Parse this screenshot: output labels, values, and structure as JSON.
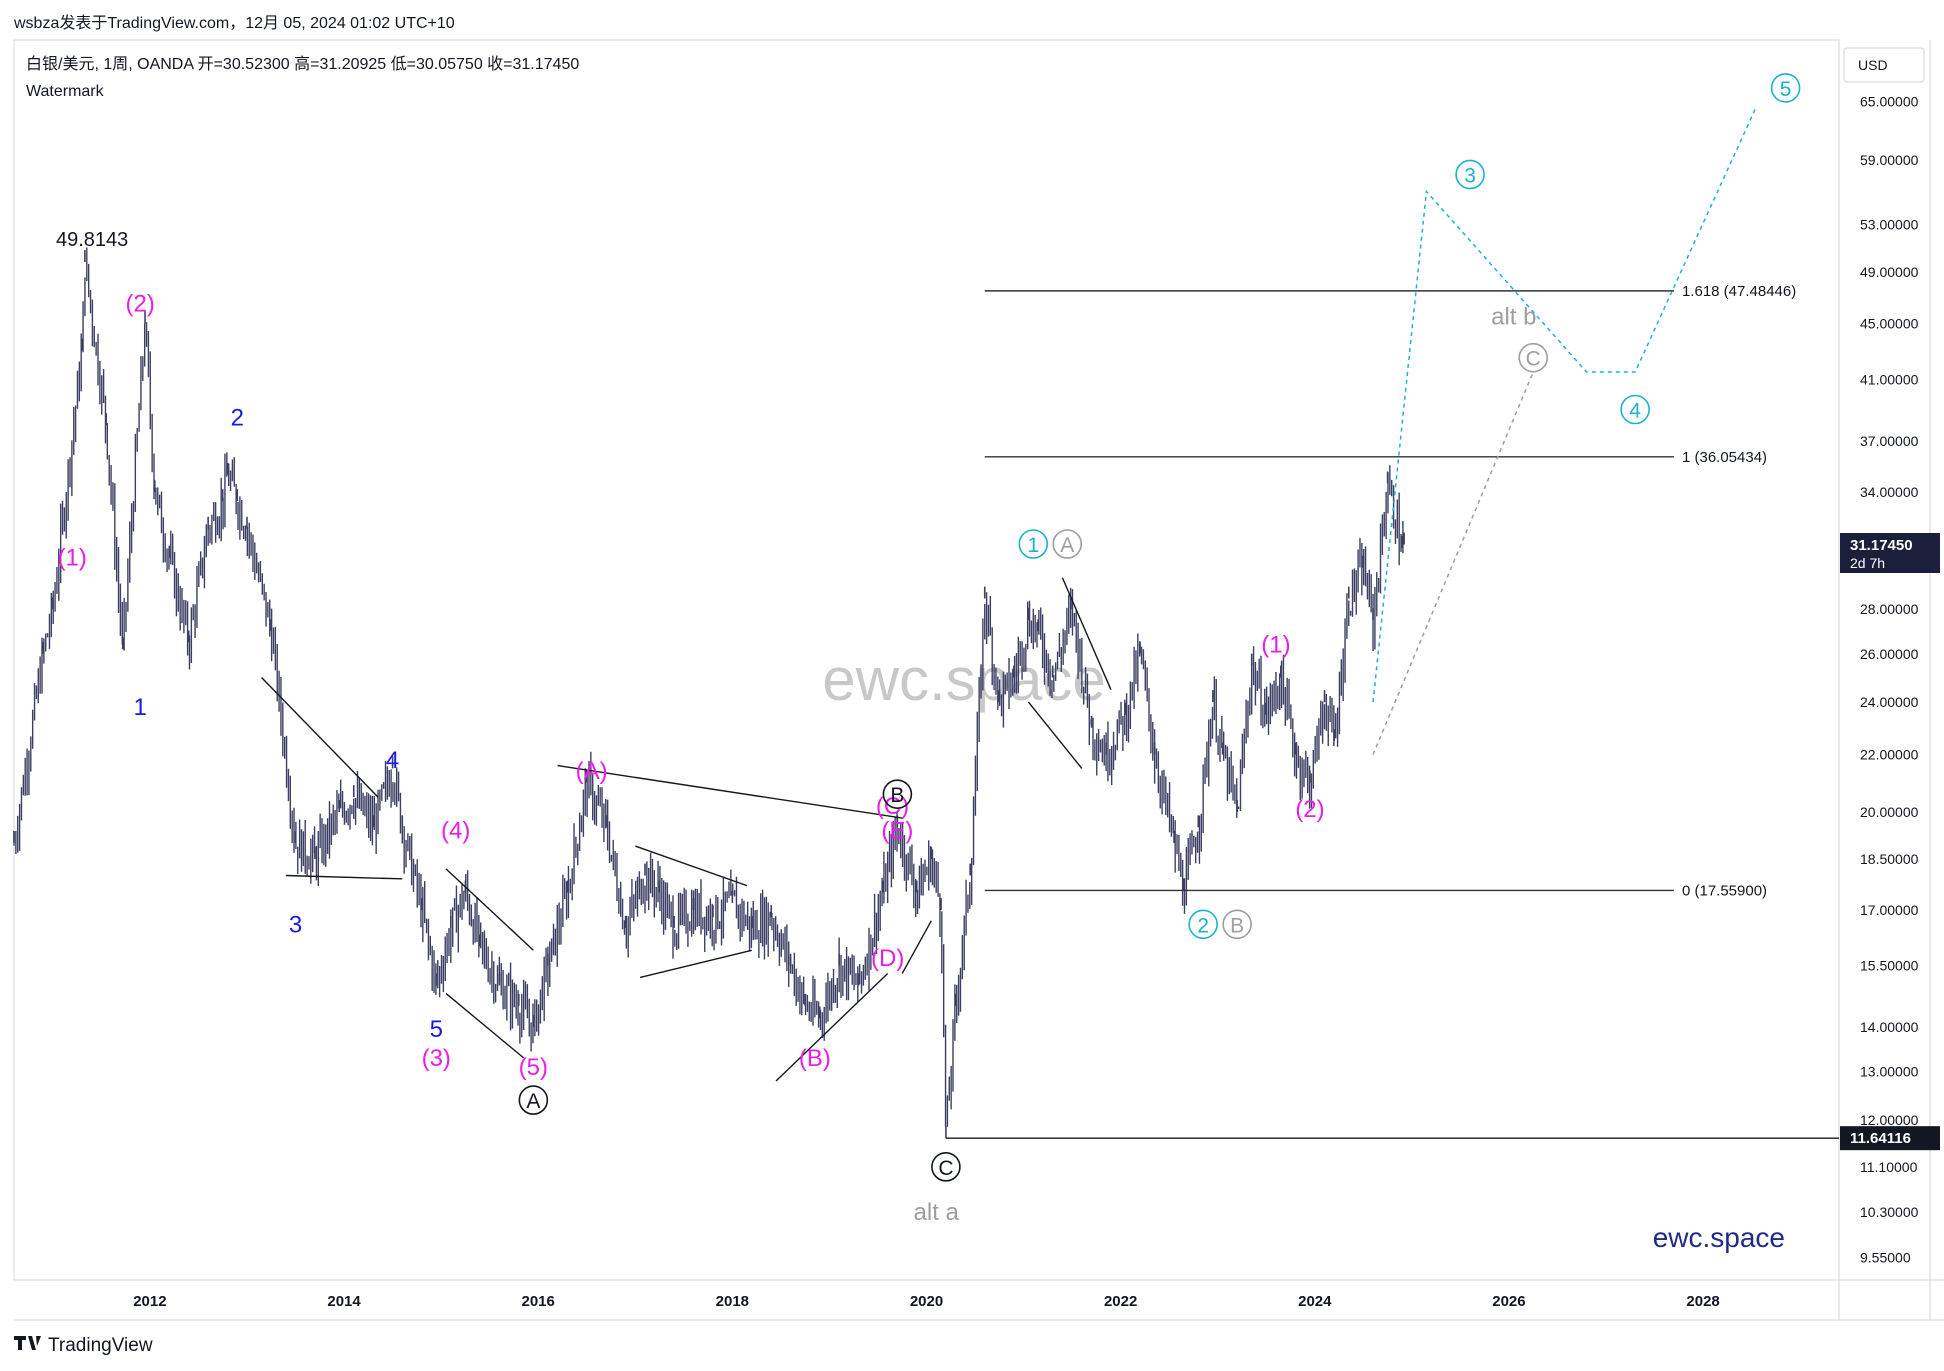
{
  "header": {
    "published": "wsbza发表于TradingView.com，12月 05, 2024 01:02 UTC+10",
    "symbol_line": "白银/美元, 1周, OANDA  开=30.52300  高=31.20925  低=30.05750  收=31.17450",
    "watermark_label": "Watermark"
  },
  "price_axis": {
    "currency": "USD",
    "ticks": [
      "65.00000",
      "59.00000",
      "53.00000",
      "49.00000",
      "45.00000",
      "41.00000",
      "37.00000",
      "34.00000",
      "28.00000",
      "26.00000",
      "24.00000",
      "22.00000",
      "20.00000",
      "18.50000",
      "17.00000",
      "15.50000",
      "14.00000",
      "13.00000",
      "12.00000",
      "11.10000",
      "10.30000",
      "9.55000"
    ],
    "last_price": "31.17450",
    "countdown": "2d 7h",
    "low_marker": "11.64116"
  },
  "time_axis": {
    "ticks": [
      "2012",
      "2014",
      "2016",
      "2018",
      "2020",
      "2022",
      "2024",
      "2026",
      "2028"
    ]
  },
  "overlay": {
    "center_watermark": "ewc.space",
    "brand": "ewc.space"
  },
  "footer": {
    "logo_text": "TradingView"
  },
  "colors": {
    "candle": "#3c3f63",
    "magenta": "#e91ee4",
    "blue": "#1a1ae6",
    "cyan": "#1ab3cf",
    "gray": "#9e9e9e",
    "black": "#131722",
    "red": "#e53935",
    "navy": "#1f2a8a"
  },
  "chart_data": {
    "type": "candlestick",
    "symbol": "XAGUSD",
    "interval": "1W",
    "exchange": "OANDA",
    "log_scale": true,
    "ylim": [
      9.2,
      72
    ],
    "xlim": [
      2010.6,
      2029.4
    ],
    "ohlc_last": {
      "open": 30.523,
      "high": 31.20925,
      "low": 30.0575,
      "close": 31.1745
    },
    "pivots": [
      [
        2010.6,
        19.0
      ],
      [
        2010.9,
        26.0
      ],
      [
        2011.0,
        28.0
      ],
      [
        2011.3,
        43.0
      ],
      [
        2011.33,
        49.8143
      ],
      [
        2011.55,
        38.0
      ],
      [
        2011.72,
        26.2
      ],
      [
        2011.95,
        45.0
      ],
      [
        2012.05,
        34.0
      ],
      [
        2012.2,
        30.5
      ],
      [
        2012.4,
        26.5
      ],
      [
        2012.6,
        32.0
      ],
      [
        2012.75,
        33.5
      ],
      [
        2012.8,
        35.0
      ],
      [
        2012.9,
        33.5
      ],
      [
        2013.0,
        32.0
      ],
      [
        2013.25,
        27.0
      ],
      [
        2013.5,
        19.0
      ],
      [
        2013.7,
        18.5
      ],
      [
        2013.95,
        20.0
      ],
      [
        2014.1,
        20.5
      ],
      [
        2014.3,
        19.5
      ],
      [
        2014.5,
        21.5
      ],
      [
        2014.6,
        19.5
      ],
      [
        2014.8,
        17.0
      ],
      [
        2014.95,
        15.0
      ],
      [
        2015.1,
        16.5
      ],
      [
        2015.25,
        17.5
      ],
      [
        2015.4,
        16.0
      ],
      [
        2015.6,
        15.0
      ],
      [
        2015.8,
        14.5
      ],
      [
        2015.95,
        14.0
      ],
      [
        2016.1,
        15.5
      ],
      [
        2016.3,
        17.5
      ],
      [
        2016.5,
        21.0
      ],
      [
        2016.7,
        19.5
      ],
      [
        2016.9,
        16.5
      ],
      [
        2017.1,
        18.0
      ],
      [
        2017.25,
        17.5
      ],
      [
        2017.4,
        16.5
      ],
      [
        2017.6,
        17.0
      ],
      [
        2017.8,
        16.8
      ],
      [
        2018.0,
        17.2
      ],
      [
        2018.2,
        16.5
      ],
      [
        2018.4,
        16.8
      ],
      [
        2018.6,
        15.5
      ],
      [
        2018.75,
        14.5
      ],
      [
        2018.9,
        14.2
      ],
      [
        2019.1,
        15.5
      ],
      [
        2019.3,
        15.0
      ],
      [
        2019.55,
        17.5
      ],
      [
        2019.7,
        19.5
      ],
      [
        2019.9,
        17.5
      ],
      [
        2020.05,
        18.5
      ],
      [
        2020.15,
        17.0
      ],
      [
        2020.2,
        11.64116
      ],
      [
        2020.3,
        14.5
      ],
      [
        2020.45,
        18.0
      ],
      [
        2020.6,
        28.5
      ],
      [
        2020.75,
        24.0
      ],
      [
        2020.9,
        25.0
      ],
      [
        2021.05,
        27.5
      ],
      [
        2021.15,
        27.0
      ],
      [
        2021.3,
        25.0
      ],
      [
        2021.5,
        28.0
      ],
      [
        2021.7,
        23.0
      ],
      [
        2021.85,
        22.0
      ],
      [
        2022.05,
        23.5
      ],
      [
        2022.2,
        26.0
      ],
      [
        2022.35,
        22.0
      ],
      [
        2022.55,
        19.0
      ],
      [
        2022.65,
        17.559
      ],
      [
        2022.8,
        19.5
      ],
      [
        2022.95,
        24.0
      ],
      [
        2023.05,
        22.0
      ],
      [
        2023.2,
        20.0
      ],
      [
        2023.35,
        25.5
      ],
      [
        2023.5,
        23.5
      ],
      [
        2023.65,
        25.0
      ],
      [
        2023.8,
        22.0
      ],
      [
        2023.95,
        21.0
      ],
      [
        2024.1,
        24.0
      ],
      [
        2024.2,
        22.5
      ],
      [
        2024.35,
        28.5
      ],
      [
        2024.5,
        30.0
      ],
      [
        2024.6,
        27.5
      ],
      [
        2024.75,
        34.5
      ],
      [
        2024.9,
        31.0
      ],
      [
        2024.92,
        31.1745
      ]
    ]
  },
  "annotations": {
    "high_label": "49.8143",
    "fib_levels": [
      {
        "label": "1.618 (47.48446)",
        "value": 47.48446
      },
      {
        "label": "1 (36.05434)",
        "value": 36.05434
      },
      {
        "label": "0 (17.55900)",
        "value": 17.559
      }
    ],
    "wave_labels": [
      {
        "text": "(1)",
        "t": 2011.2,
        "p": 30.5,
        "color": "magenta",
        "style": "plain"
      },
      {
        "text": "(2)",
        "t": 2011.9,
        "p": 46.5,
        "color": "magenta",
        "style": "plain"
      },
      {
        "text": "1",
        "t": 2011.9,
        "p": 23.8,
        "color": "blue",
        "style": "plain"
      },
      {
        "text": "2",
        "t": 2012.9,
        "p": 38.5,
        "color": "blue",
        "style": "plain"
      },
      {
        "text": "3",
        "t": 2013.5,
        "p": 16.6,
        "color": "blue",
        "style": "plain"
      },
      {
        "text": "4",
        "t": 2014.5,
        "p": 21.8,
        "color": "blue",
        "style": "plain"
      },
      {
        "text": "5",
        "t": 2014.95,
        "p": 13.95,
        "color": "blue",
        "style": "plain"
      },
      {
        "text": "(3)",
        "t": 2014.95,
        "p": 13.3,
        "color": "magenta",
        "style": "plain"
      },
      {
        "text": "(4)",
        "t": 2015.15,
        "p": 19.4,
        "color": "magenta",
        "style": "plain"
      },
      {
        "text": "(5)",
        "t": 2015.95,
        "p": 13.1,
        "color": "magenta",
        "style": "plain"
      },
      {
        "text": "A",
        "t": 2015.95,
        "p": 12.4,
        "color": "black",
        "style": "circle"
      },
      {
        "text": "(A)",
        "t": 2016.55,
        "p": 21.4,
        "color": "magenta",
        "style": "plain"
      },
      {
        "text": "(B)",
        "t": 2018.85,
        "p": 13.3,
        "color": "magenta",
        "style": "plain"
      },
      {
        "text": "(C)",
        "t": 2019.65,
        "p": 20.2,
        "color": "magenta",
        "style": "plain"
      },
      {
        "text": "(E)",
        "t": 2019.7,
        "p": 19.4,
        "color": "magenta",
        "style": "plain"
      },
      {
        "text": "B",
        "t": 2019.7,
        "p": 20.6,
        "color": "black",
        "style": "circle"
      },
      {
        "text": "(D)",
        "t": 2019.6,
        "p": 15.7,
        "color": "magenta",
        "style": "plain"
      },
      {
        "text": "C",
        "t": 2020.2,
        "p": 11.1,
        "color": "black",
        "style": "circle"
      },
      {
        "text": "alt  a",
        "t": 2020.1,
        "p": 10.3,
        "color": "gray",
        "style": "plain"
      },
      {
        "text": "1",
        "t": 2021.1,
        "p": 31.2,
        "color": "cyan",
        "style": "circle"
      },
      {
        "text": "A",
        "t": 2021.45,
        "p": 31.2,
        "color": "gray",
        "style": "circle"
      },
      {
        "text": "2",
        "t": 2022.85,
        "p": 16.6,
        "color": "cyan",
        "style": "circle"
      },
      {
        "text": "B",
        "t": 2023.2,
        "p": 16.6,
        "color": "gray",
        "style": "circle"
      },
      {
        "text": "(1)",
        "t": 2023.6,
        "p": 26.4,
        "color": "magenta",
        "style": "plain"
      },
      {
        "text": "(2)",
        "t": 2023.95,
        "p": 20.1,
        "color": "magenta",
        "style": "plain"
      },
      {
        "text": "3",
        "t": 2025.6,
        "p": 57.6,
        "color": "cyan",
        "style": "circle"
      },
      {
        "text": "alt b",
        "t": 2026.05,
        "p": 45.5,
        "color": "gray",
        "style": "plain"
      },
      {
        "text": "C",
        "t": 2026.25,
        "p": 42.5,
        "color": "gray",
        "style": "circle"
      },
      {
        "text": "4",
        "t": 2027.3,
        "p": 39.0,
        "color": "cyan",
        "style": "circle"
      },
      {
        "text": "5",
        "t": 2028.85,
        "p": 66.5,
        "color": "cyan",
        "style": "circle"
      }
    ],
    "trend_lines": [
      {
        "t1": 2013.15,
        "p1": 25.0,
        "t2": 2014.35,
        "p2": 20.5
      },
      {
        "t1": 2013.4,
        "p1": 18.0,
        "t2": 2014.6,
        "p2": 17.9
      },
      {
        "t1": 2015.05,
        "p1": 18.2,
        "t2": 2015.95,
        "p2": 15.9
      },
      {
        "t1": 2015.05,
        "p1": 14.8,
        "t2": 2015.85,
        "p2": 13.3
      },
      {
        "t1": 2016.2,
        "p1": 21.6,
        "t2": 2019.75,
        "p2": 19.8
      },
      {
        "t1": 2017.0,
        "p1": 18.9,
        "t2": 2018.15,
        "p2": 17.7
      },
      {
        "t1": 2017.05,
        "p1": 15.2,
        "t2": 2018.2,
        "p2": 15.9
      },
      {
        "t1": 2018.45,
        "p1": 12.8,
        "t2": 2019.6,
        "p2": 15.3
      },
      {
        "t1": 2019.75,
        "p1": 15.3,
        "t2": 2020.05,
        "p2": 16.7
      },
      {
        "t1": 2021.4,
        "p1": 29.5,
        "t2": 2021.9,
        "p2": 24.5
      },
      {
        "t1": 2021.05,
        "p1": 24.0,
        "t2": 2021.6,
        "p2": 21.5
      }
    ],
    "projections": [
      {
        "color": "cyan",
        "points": [
          [
            2024.6,
            24.0
          ],
          [
            2025.15,
            56.0
          ],
          [
            2026.8,
            41.5
          ],
          [
            2027.3,
            41.5
          ],
          [
            2028.55,
            64.5
          ]
        ]
      },
      {
        "color": "gray",
        "points": [
          [
            2024.6,
            22.0
          ],
          [
            2026.25,
            41.5
          ]
        ]
      }
    ]
  }
}
